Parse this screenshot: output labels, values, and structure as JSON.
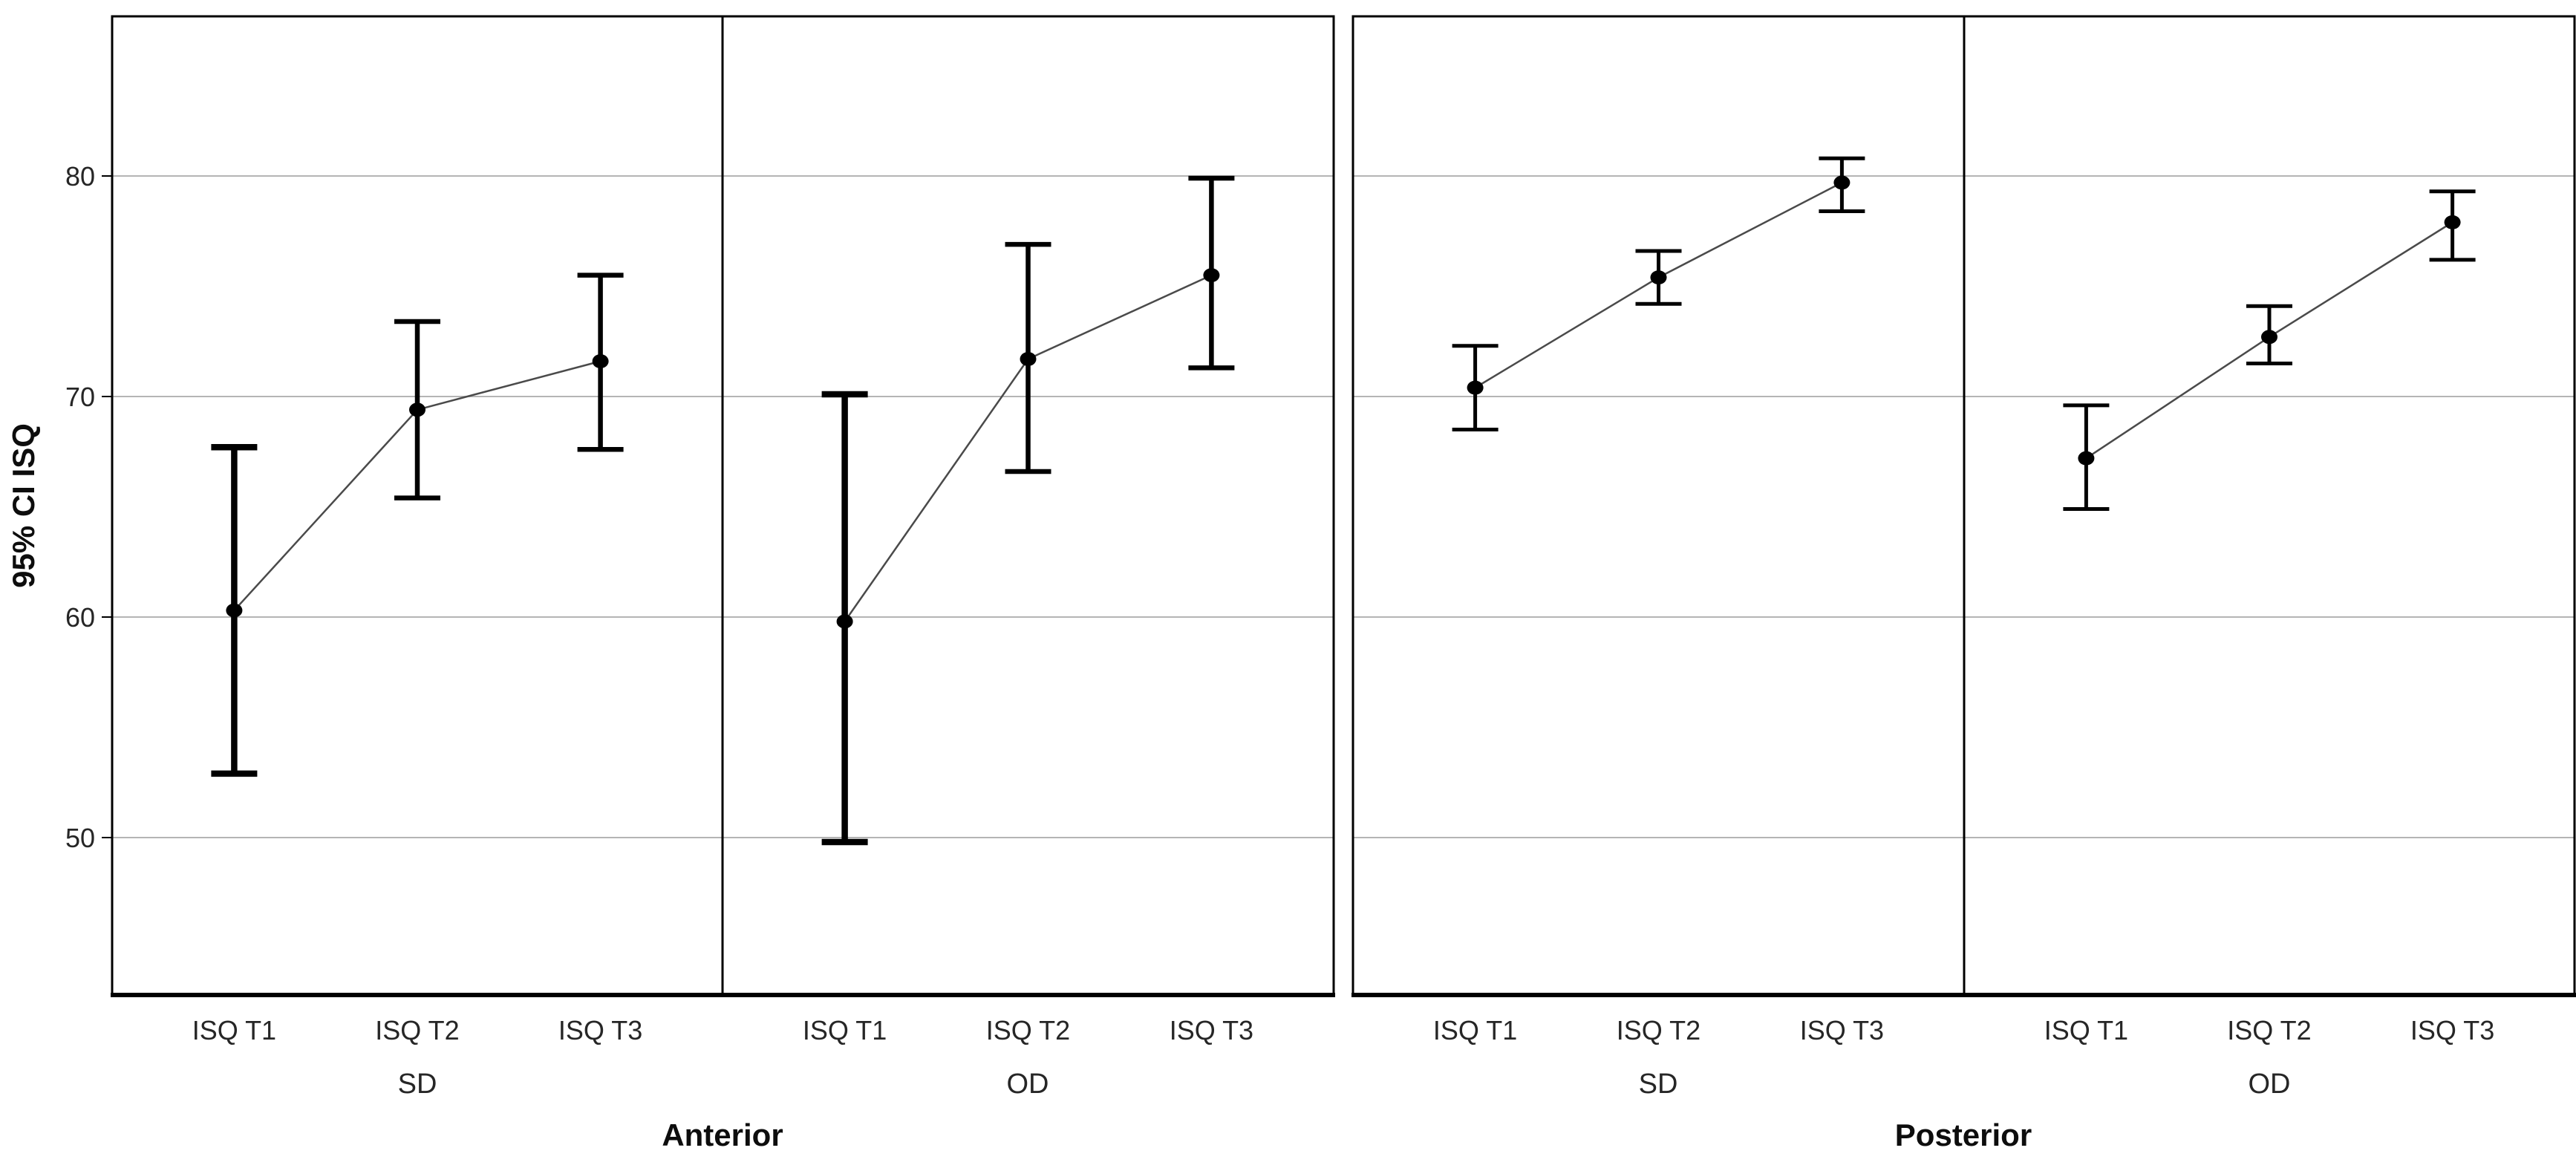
{
  "chart_data": {
    "type": "line",
    "subtype": "error-bar-point-plot",
    "title": "",
    "ylabel": "95% CI ISQ",
    "xlabel": "",
    "categories": [
      "ISQ T1",
      "ISQ T2",
      "ISQ T3"
    ],
    "y_ticks": [
      50,
      60,
      70,
      80
    ],
    "ylim": [
      43,
      87.2
    ],
    "grid": true,
    "legend": "none",
    "facets": [
      {
        "label": "Anterior",
        "groups": [
          {
            "label": "SD",
            "points": [
              {
                "category": "ISQ T1",
                "mean": 60.3,
                "ci_low": 52.9,
                "ci_high": 67.7
              },
              {
                "category": "ISQ T2",
                "mean": 69.4,
                "ci_low": 65.4,
                "ci_high": 73.4
              },
              {
                "category": "ISQ T3",
                "mean": 71.6,
                "ci_low": 67.6,
                "ci_high": 75.5
              }
            ]
          },
          {
            "label": "OD",
            "points": [
              {
                "category": "ISQ T1",
                "mean": 59.8,
                "ci_low": 49.8,
                "ci_high": 70.1
              },
              {
                "category": "ISQ T2",
                "mean": 71.7,
                "ci_low": 66.6,
                "ci_high": 76.9
              },
              {
                "category": "ISQ T3",
                "mean": 75.5,
                "ci_low": 71.3,
                "ci_high": 79.9
              }
            ]
          }
        ]
      },
      {
        "label": "Posterior",
        "groups": [
          {
            "label": "SD",
            "points": [
              {
                "category": "ISQ T1",
                "mean": 70.4,
                "ci_low": 68.5,
                "ci_high": 72.3
              },
              {
                "category": "ISQ T2",
                "mean": 75.4,
                "ci_low": 74.2,
                "ci_high": 76.6
              },
              {
                "category": "ISQ T3",
                "mean": 79.7,
                "ci_low": 78.4,
                "ci_high": 80.8
              }
            ]
          },
          {
            "label": "OD",
            "points": [
              {
                "category": "ISQ T1",
                "mean": 67.2,
                "ci_low": 64.9,
                "ci_high": 69.6
              },
              {
                "category": "ISQ T2",
                "mean": 72.7,
                "ci_low": 71.5,
                "ci_high": 74.1
              },
              {
                "category": "ISQ T3",
                "mean": 77.9,
                "ci_low": 76.2,
                "ci_high": 79.3
              }
            ]
          }
        ]
      }
    ],
    "colors": {
      "background": "#ffffff",
      "panel_border": "#000000",
      "gridline": "#b5b5b5",
      "series_line": "#4a4a4a",
      "error_bar": "#000000",
      "marker": "#000000",
      "tick_text": "#262626",
      "label_text": "#0d0d0d"
    }
  }
}
